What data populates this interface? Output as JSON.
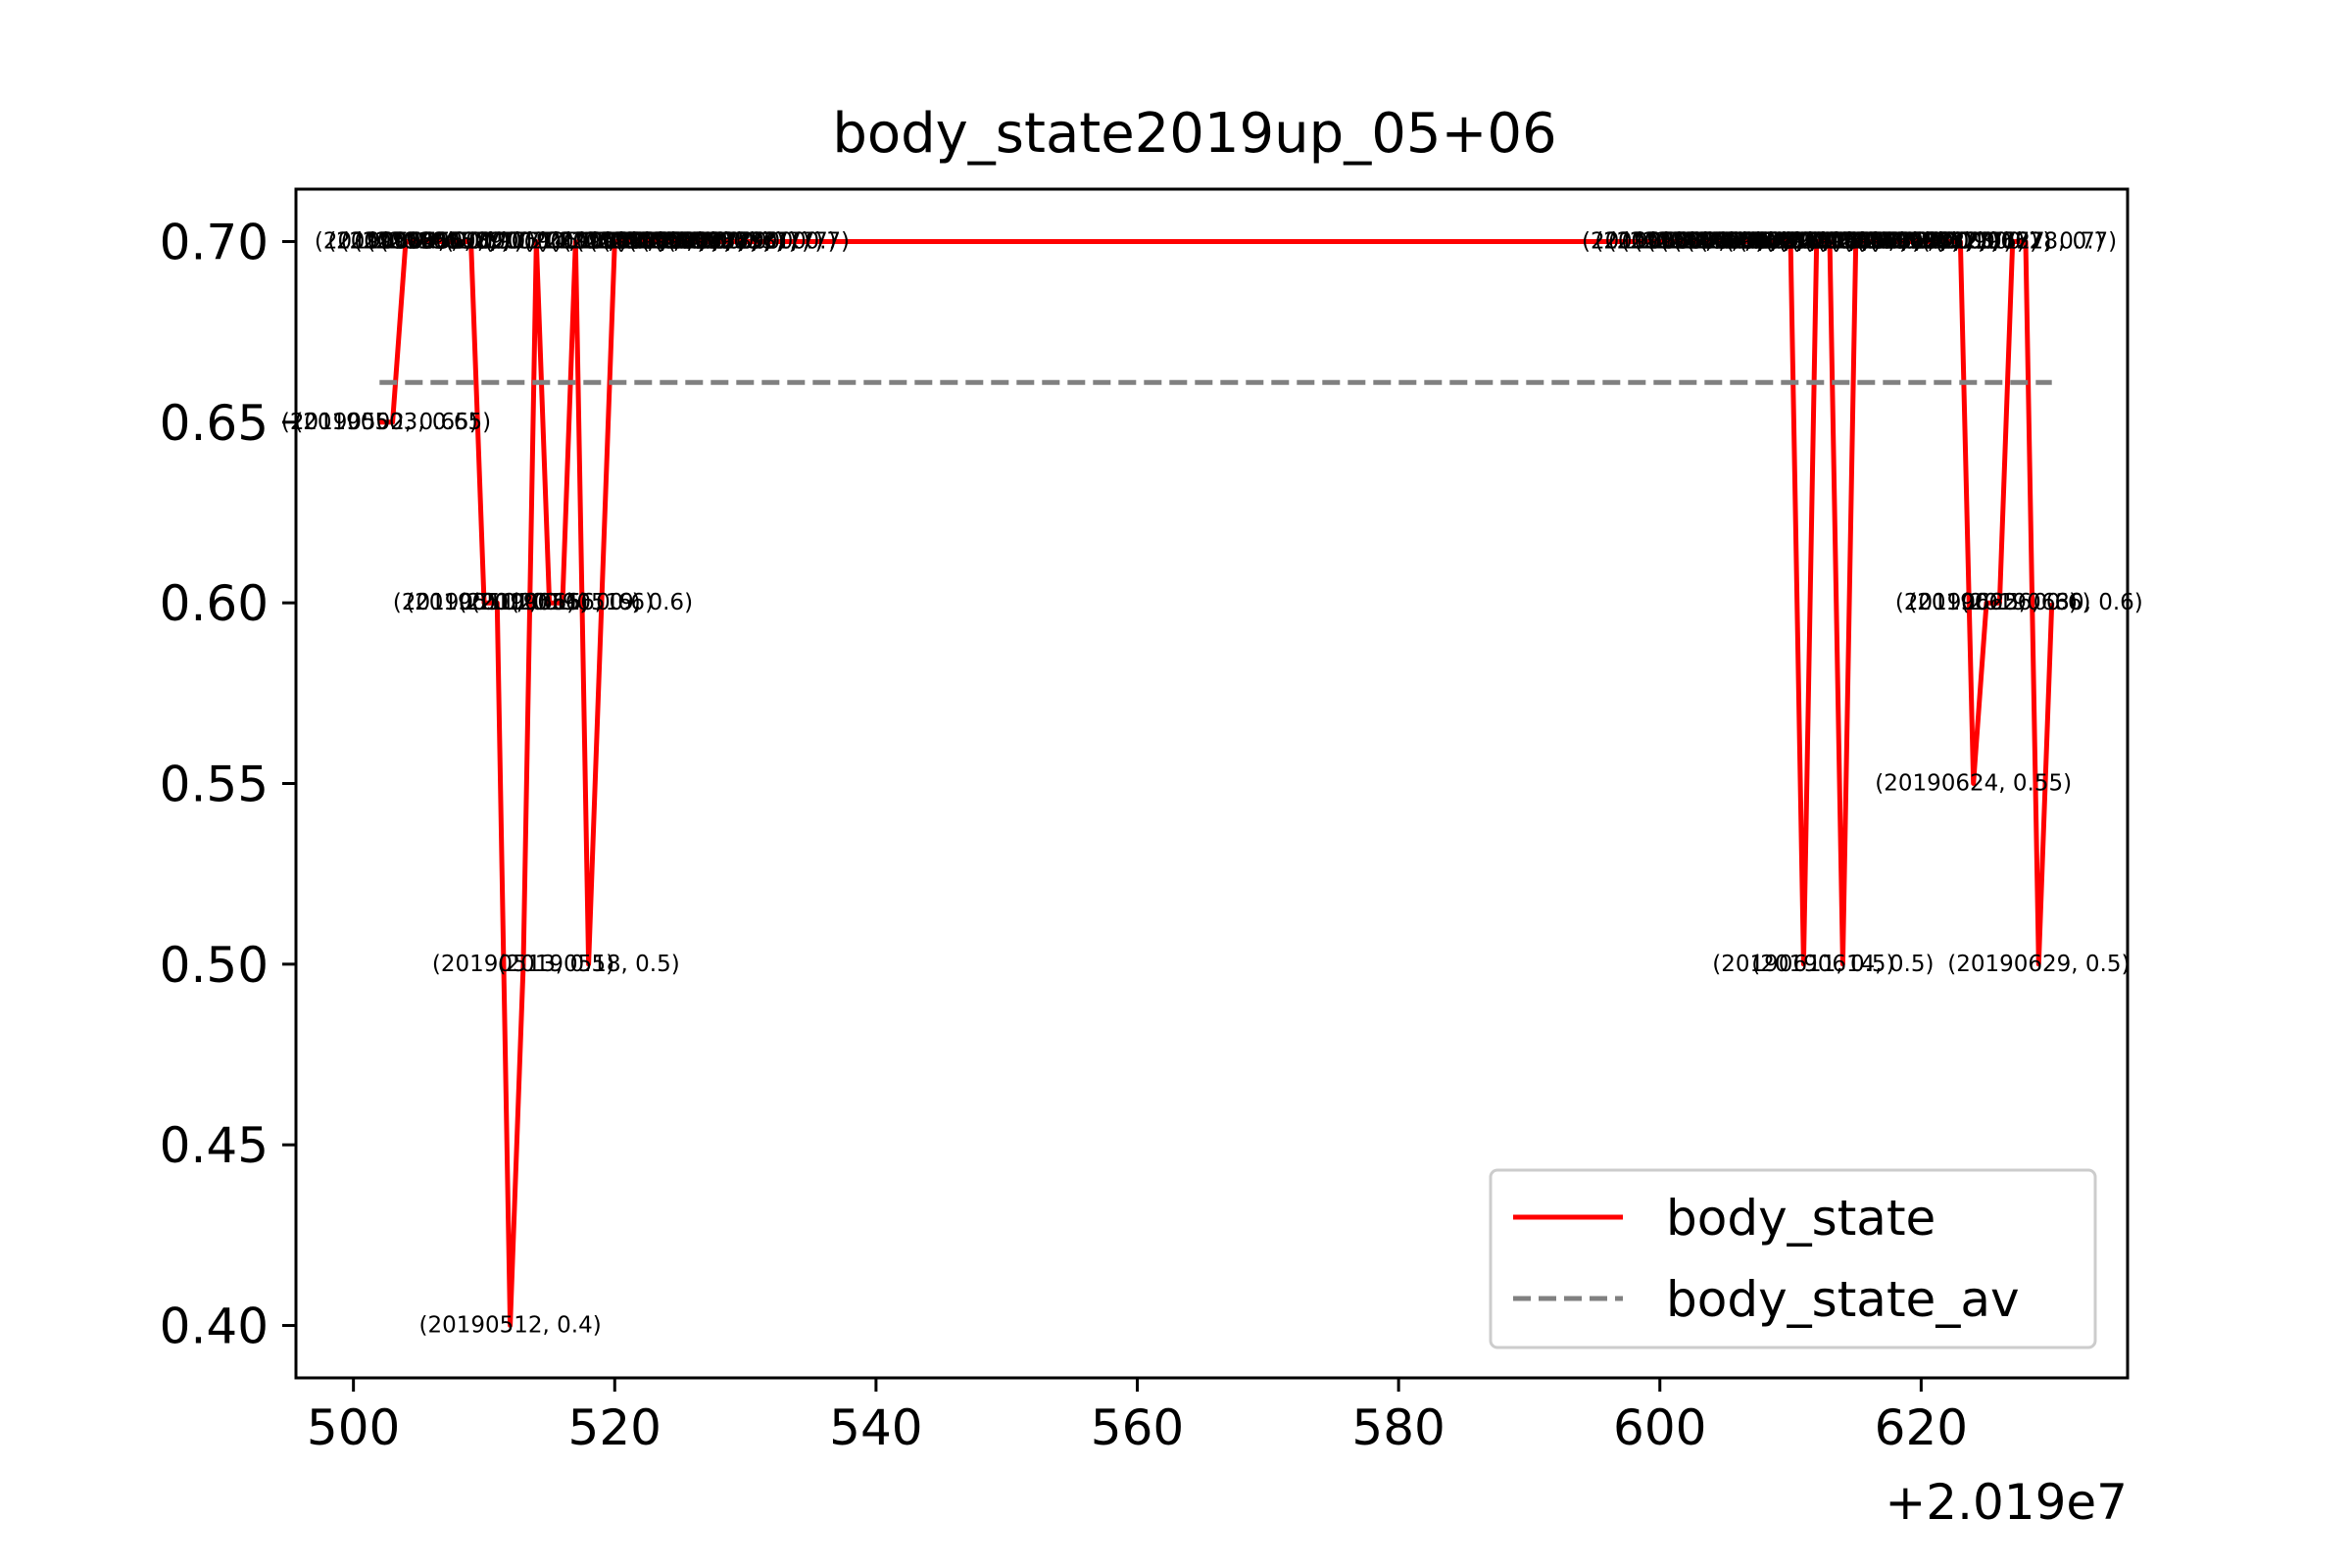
{
  "chart_data": {
    "type": "line",
    "title": "body_state2019up_05+06",
    "xlabel": "",
    "ylabel": "",
    "x_offset_label": "+2.019e7",
    "xlim": [
      495.6,
      635.8
    ],
    "ylim": [
      0.3855,
      0.7145
    ],
    "x_ticks": [
      500,
      520,
      540,
      560,
      580,
      600,
      620
    ],
    "y_ticks": [
      0.4,
      0.45,
      0.5,
      0.55,
      0.6,
      0.65,
      0.7
    ],
    "x_tick_labels": [
      "500",
      "520",
      "540",
      "560",
      "580",
      "600",
      "620"
    ],
    "y_tick_labels": [
      "0.40",
      "0.45",
      "0.50",
      "0.55",
      "0.60",
      "0.65",
      "0.70"
    ],
    "grid": false,
    "legend_position": "lower-right",
    "series": [
      {
        "name": "body_state",
        "color": "#ff0000",
        "style": "solid",
        "x": [
          502,
          503,
          504,
          505,
          506,
          507,
          508,
          509,
          510,
          511,
          512,
          513,
          514,
          515,
          516,
          517,
          518,
          519,
          520,
          521,
          522,
          523,
          524,
          525,
          526,
          527,
          528,
          529,
          530,
          531,
          601,
          602,
          603,
          604,
          605,
          606,
          607,
          608,
          609,
          610,
          611,
          612,
          613,
          614,
          615,
          616,
          617,
          618,
          619,
          620,
          621,
          622,
          623,
          624,
          625,
          626,
          627,
          628,
          629,
          630
        ],
        "y": [
          0.65,
          0.65,
          0.7,
          0.7,
          0.7,
          0.7,
          0.7,
          0.7,
          0.6,
          0.6,
          0.4,
          0.5,
          0.7,
          0.6,
          0.6,
          0.7,
          0.5,
          0.6,
          0.7,
          0.7,
          0.7,
          0.7,
          0.7,
          0.7,
          0.7,
          0.7,
          0.7,
          0.7,
          0.7,
          0.7,
          0.7,
          0.7,
          0.7,
          0.7,
          0.7,
          0.7,
          0.7,
          0.7,
          0.7,
          0.7,
          0.5,
          0.7,
          0.7,
          0.5,
          0.7,
          0.7,
          0.7,
          0.7,
          0.7,
          0.7,
          0.7,
          0.7,
          0.7,
          0.55,
          0.6,
          0.6,
          0.7,
          0.7,
          0.5,
          0.6
        ]
      },
      {
        "name": "body_state_av",
        "color": "#808080",
        "style": "dashed",
        "x": [
          502,
          630
        ],
        "y": [
          0.661,
          0.661
        ]
      }
    ],
    "annotations": [
      {
        "text": "(20190502, 0.65)",
        "x": 502,
        "y": 0.65
      },
      {
        "text": "(20190503, 0.65)",
        "x": 503,
        "y": 0.65
      },
      {
        "text": "(20190504, 0.7)",
        "x": 504,
        "y": 0.7
      },
      {
        "text": "(20190505, 0.7)",
        "x": 505,
        "y": 0.7
      },
      {
        "text": "(20190506, 0.7)",
        "x": 506,
        "y": 0.7
      },
      {
        "text": "(20190507, 0.7)",
        "x": 507,
        "y": 0.7
      },
      {
        "text": "(20190508, 0.7)",
        "x": 508,
        "y": 0.7
      },
      {
        "text": "(20190509, 0.7)",
        "x": 509,
        "y": 0.7
      },
      {
        "text": "(20190510, 0.6)",
        "x": 510,
        "y": 0.6
      },
      {
        "text": "(20190511, 0.6)",
        "x": 511,
        "y": 0.6
      },
      {
        "text": "(20190512, 0.4)",
        "x": 512,
        "y": 0.4
      },
      {
        "text": "(20190513, 0.5)",
        "x": 513,
        "y": 0.5
      },
      {
        "text": "(20190514, 0.7)",
        "x": 514,
        "y": 0.7
      },
      {
        "text": "(20190515, 0.6)",
        "x": 515,
        "y": 0.6
      },
      {
        "text": "(20190516, 0.6)",
        "x": 516,
        "y": 0.6
      },
      {
        "text": "(20190517, 0.7)",
        "x": 517,
        "y": 0.7
      },
      {
        "text": "(20190518, 0.5)",
        "x": 518,
        "y": 0.5
      },
      {
        "text": "(20190519, 0.6)",
        "x": 519,
        "y": 0.6
      },
      {
        "text": "(20190520, 0.7)",
        "x": 520,
        "y": 0.7
      },
      {
        "text": "(20190521, 0.7)",
        "x": 521,
        "y": 0.7
      },
      {
        "text": "(20190522, 0.7)",
        "x": 522,
        "y": 0.7
      },
      {
        "text": "(20190523, 0.7)",
        "x": 523,
        "y": 0.7
      },
      {
        "text": "(20190524, 0.7)",
        "x": 524,
        "y": 0.7
      },
      {
        "text": "(20190525, 0.7)",
        "x": 525,
        "y": 0.7
      },
      {
        "text": "(20190526, 0.7)",
        "x": 526,
        "y": 0.7
      },
      {
        "text": "(20190527, 0.7)",
        "x": 527,
        "y": 0.7
      },
      {
        "text": "(20190528, 0.7)",
        "x": 528,
        "y": 0.7
      },
      {
        "text": "(20190529, 0.7)",
        "x": 529,
        "y": 0.7
      },
      {
        "text": "(20190530, 0.7)",
        "x": 530,
        "y": 0.7
      },
      {
        "text": "(20190531, 0.7)",
        "x": 531,
        "y": 0.7
      },
      {
        "text": "(20190601, 0.7)",
        "x": 601,
        "y": 0.7
      },
      {
        "text": "(20190602, 0.7)",
        "x": 602,
        "y": 0.7
      },
      {
        "text": "(20190603, 0.7)",
        "x": 603,
        "y": 0.7
      },
      {
        "text": "(20190604, 0.7)",
        "x": 604,
        "y": 0.7
      },
      {
        "text": "(20190605, 0.7)",
        "x": 605,
        "y": 0.7
      },
      {
        "text": "(20190606, 0.7)",
        "x": 606,
        "y": 0.7
      },
      {
        "text": "(20190607, 0.7)",
        "x": 607,
        "y": 0.7
      },
      {
        "text": "(20190608, 0.7)",
        "x": 608,
        "y": 0.7
      },
      {
        "text": "(20190609, 0.7)",
        "x": 609,
        "y": 0.7
      },
      {
        "text": "(20190610, 0.7)",
        "x": 610,
        "y": 0.7
      },
      {
        "text": "(20190611, 0.5)",
        "x": 611,
        "y": 0.5
      },
      {
        "text": "(20190612, 0.7)",
        "x": 612,
        "y": 0.7
      },
      {
        "text": "(20190613, 0.7)",
        "x": 613,
        "y": 0.7
      },
      {
        "text": "(20190614, 0.5)",
        "x": 614,
        "y": 0.5
      },
      {
        "text": "(20190615, 0.7)",
        "x": 615,
        "y": 0.7
      },
      {
        "text": "(20190616, 0.7)",
        "x": 616,
        "y": 0.7
      },
      {
        "text": "(20190617, 0.7)",
        "x": 617,
        "y": 0.7
      },
      {
        "text": "(20190618, 0.7)",
        "x": 618,
        "y": 0.7
      },
      {
        "text": "(20190619, 0.7)",
        "x": 619,
        "y": 0.7
      },
      {
        "text": "(20190620, 0.7)",
        "x": 620,
        "y": 0.7
      },
      {
        "text": "(20190621, 0.7)",
        "x": 621,
        "y": 0.7
      },
      {
        "text": "(20190622, 0.7)",
        "x": 622,
        "y": 0.7
      },
      {
        "text": "(20190623, 0.7)",
        "x": 623,
        "y": 0.7
      },
      {
        "text": "(20190624, 0.55)",
        "x": 624,
        "y": 0.55
      },
      {
        "text": "(20190625, 0.6)",
        "x": 625,
        "y": 0.6
      },
      {
        "text": "(20190626, 0.6)",
        "x": 626,
        "y": 0.6
      },
      {
        "text": "(20190627, 0.7)",
        "x": 627,
        "y": 0.7
      },
      {
        "text": "(20190628, 0.7)",
        "x": 628,
        "y": 0.7
      },
      {
        "text": "(20190629, 0.5)",
        "x": 629,
        "y": 0.5
      },
      {
        "text": "(20190630, 0.6)",
        "x": 630,
        "y": 0.6
      }
    ]
  }
}
